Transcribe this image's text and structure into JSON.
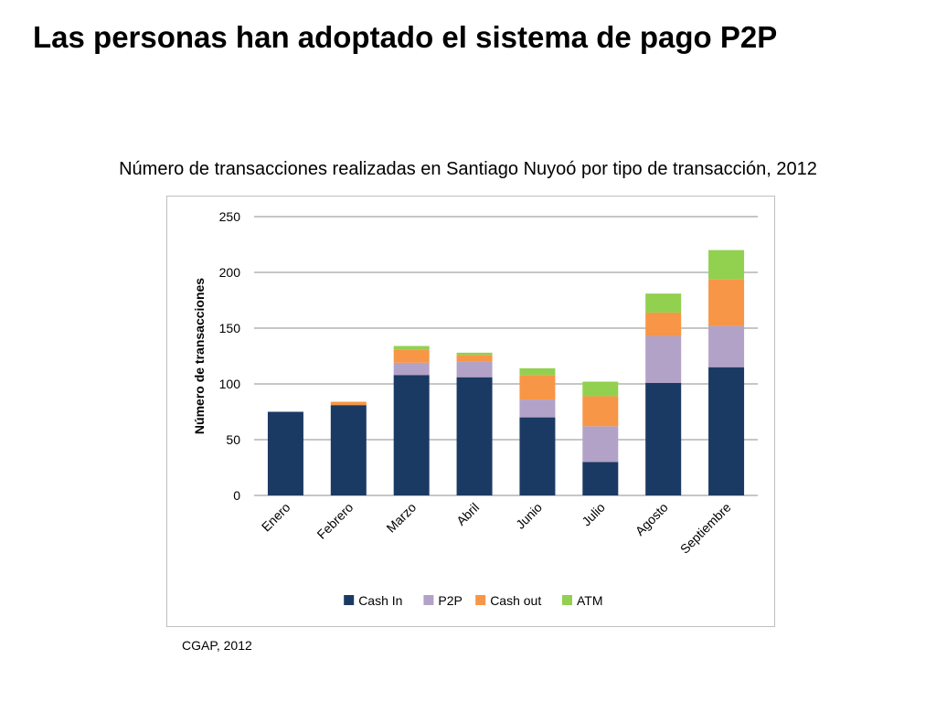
{
  "slide": {
    "title": "Las personas han adoptado el sistema de pago P2P",
    "source": "CGAP, 2012"
  },
  "chart_data": {
    "type": "bar",
    "stacked": true,
    "title": "Número de transacciones realizadas en Santiago Nuyoó por tipo de transacción, 2012",
    "xlabel": "",
    "ylabel": "Número de transacciones",
    "ylim": [
      0,
      250
    ],
    "yticks": [
      0,
      50,
      100,
      150,
      200,
      250
    ],
    "grid": true,
    "legend_position": "bottom",
    "categories": [
      "Enero",
      "Febrero",
      "Marzo",
      "Abril",
      "Junio",
      "Julio",
      "Agosto",
      "Septiembre"
    ],
    "series": [
      {
        "name": "Cash In",
        "color": "#1b3a63",
        "values": [
          75,
          81,
          108,
          106,
          70,
          30,
          101,
          115
        ]
      },
      {
        "name": "P2P",
        "color": "#b3a2c7",
        "values": [
          0,
          0,
          11,
          14,
          16,
          32,
          42,
          37
        ]
      },
      {
        "name": "Cash out",
        "color": "#f79646",
        "values": [
          0,
          3,
          12,
          6,
          22,
          27,
          21,
          42
        ]
      },
      {
        "name": "ATM",
        "color": "#92d050",
        "values": [
          0,
          0,
          3,
          2,
          6,
          13,
          17,
          26
        ]
      }
    ]
  }
}
